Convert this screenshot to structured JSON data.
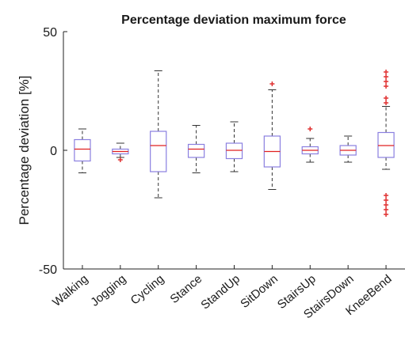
{
  "chart_data": {
    "type": "box",
    "title": "Percentage deviation maximum force",
    "ylabel": "Percentage deviation [%]",
    "xlabel": "",
    "ylim": [
      -50,
      50
    ],
    "yticks": [
      -50,
      0,
      50
    ],
    "grid": false,
    "colors": {
      "box": "#8a7fe0",
      "median": "#e02020",
      "outlier": "#e03030",
      "whisker": "#333333",
      "axis": "#222222"
    },
    "categories": [
      "Walking",
      "Jogging",
      "Cycling",
      "Stance",
      "StandUp",
      "SitDown",
      "StairsUp",
      "StairsDown",
      "KneeBend"
    ],
    "boxes": [
      {
        "category": "Walking",
        "min": -9.5,
        "q1": -4.5,
        "median": 0.5,
        "q3": 4.5,
        "max": 9,
        "outliers": []
      },
      {
        "category": "Jogging",
        "min": -3,
        "q1": -1.5,
        "median": -0.5,
        "q3": 0.5,
        "max": 3,
        "outliers": [
          -4
        ]
      },
      {
        "category": "Cycling",
        "min": -20,
        "q1": -9,
        "median": 2,
        "q3": 8,
        "max": 33.5,
        "outliers": []
      },
      {
        "category": "Stance",
        "min": -9.5,
        "q1": -3,
        "median": 0.5,
        "q3": 2.5,
        "max": 10.5,
        "outliers": []
      },
      {
        "category": "StandUp",
        "min": -9,
        "q1": -3.5,
        "median": 0,
        "q3": 3,
        "max": 12,
        "outliers": []
      },
      {
        "category": "SitDown",
        "min": -16.5,
        "q1": -7,
        "median": -0.5,
        "q3": 6,
        "max": 25.5,
        "outliers": [
          28
        ]
      },
      {
        "category": "StairsUp",
        "min": -5,
        "q1": -1.5,
        "median": 0,
        "q3": 1.5,
        "max": 5,
        "outliers": [
          9
        ]
      },
      {
        "category": "StairsDown",
        "min": -5,
        "q1": -2,
        "median": 0,
        "q3": 2,
        "max": 6,
        "outliers": []
      },
      {
        "category": "KneeBend",
        "min": -8,
        "q1": -3,
        "median": 2,
        "q3": 7.5,
        "max": 18.5,
        "outliers": [
          33,
          31,
          29,
          27,
          22,
          20,
          -19,
          -21,
          -23,
          -25,
          -27
        ]
      }
    ]
  }
}
